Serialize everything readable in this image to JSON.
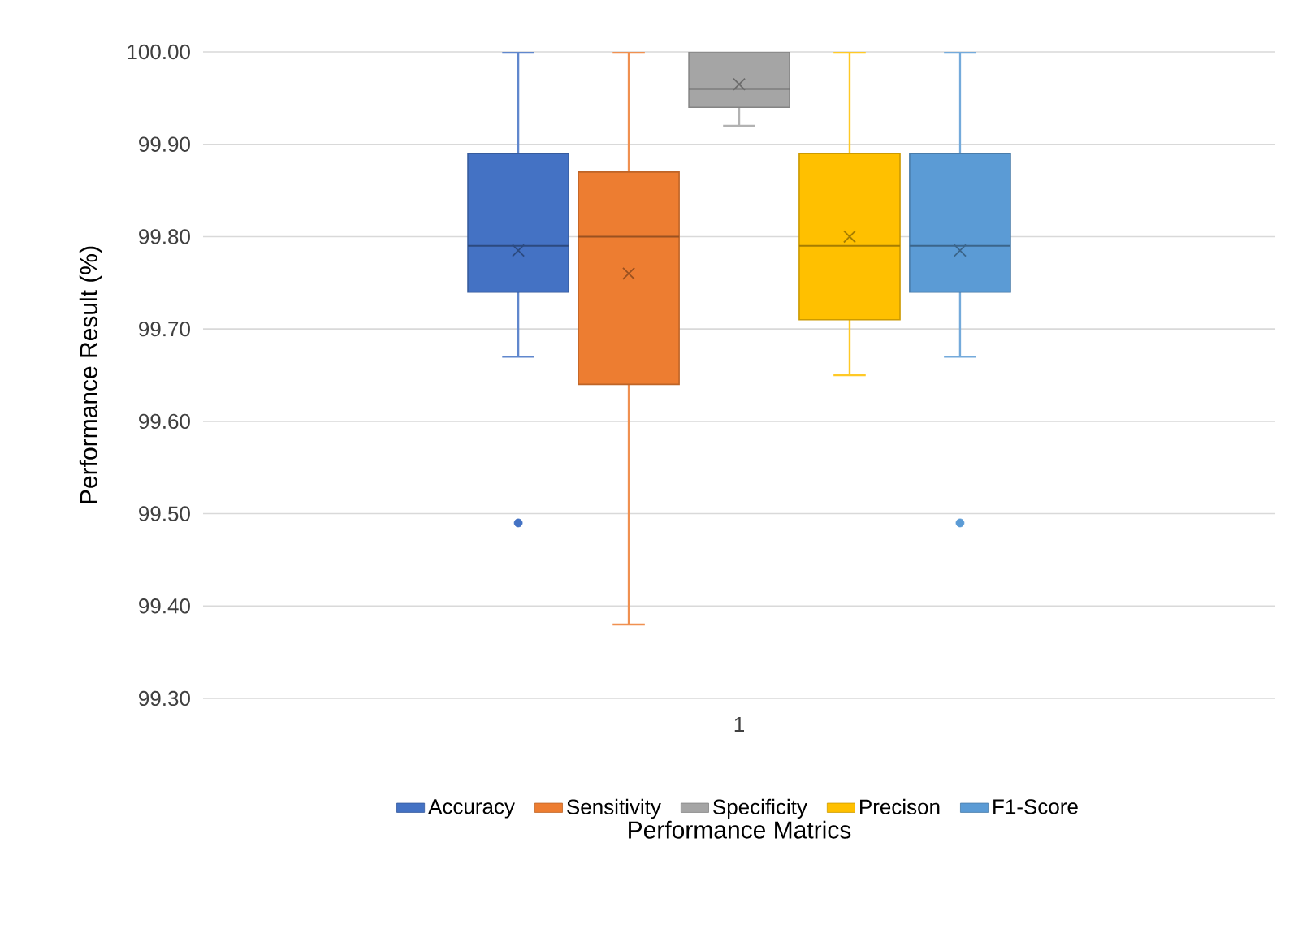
{
  "chart_data": {
    "type": "box",
    "xlabel": "Performance Matrics",
    "ylabel": "Performance Result (%)",
    "categories": [
      "1"
    ],
    "ylim": [
      99.3,
      100.0
    ],
    "yticks": [
      {
        "value": 99.3,
        "label": "99.30"
      },
      {
        "value": 99.4,
        "label": "99.40"
      },
      {
        "value": 99.5,
        "label": "99.50"
      },
      {
        "value": 99.6,
        "label": "99.60"
      },
      {
        "value": 99.7,
        "label": "99.70"
      },
      {
        "value": 99.8,
        "label": "99.80"
      },
      {
        "value": 99.9,
        "label": "99.90"
      },
      {
        "value": 100.0,
        "label": "100.00"
      }
    ],
    "grid": "y",
    "legend": "bottom",
    "series": [
      {
        "name": "Accuracy",
        "color": "#4472c4",
        "boxes": [
          {
            "low": 99.67,
            "q1": 99.74,
            "median": 99.79,
            "q3": 99.89,
            "high": 100.0,
            "mean": 99.785,
            "outliers": [
              99.49
            ]
          }
        ]
      },
      {
        "name": "Sensitivity",
        "color": "#ed7d31",
        "boxes": [
          {
            "low": 99.38,
            "q1": 99.64,
            "median": 99.8,
            "q3": 99.87,
            "high": 100.0,
            "mean": 99.76
          }
        ]
      },
      {
        "name": "Specificity",
        "color": "#a5a5a5",
        "boxes": [
          {
            "low": 99.92,
            "q1": 99.94,
            "median": 99.96,
            "q3": 100.0,
            "high": 100.0,
            "mean": 99.965
          }
        ]
      },
      {
        "name": "Precison",
        "color": "#ffc000",
        "boxes": [
          {
            "low": 99.65,
            "q1": 99.71,
            "median": 99.79,
            "q3": 99.89,
            "high": 100.0,
            "mean": 99.8
          }
        ]
      },
      {
        "name": "F1-Score",
        "color": "#5b9bd5",
        "boxes": [
          {
            "low": 99.67,
            "q1": 99.74,
            "median": 99.79,
            "q3": 99.89,
            "high": 100.0,
            "mean": 99.785,
            "outliers": [
              99.49
            ]
          }
        ]
      }
    ]
  }
}
